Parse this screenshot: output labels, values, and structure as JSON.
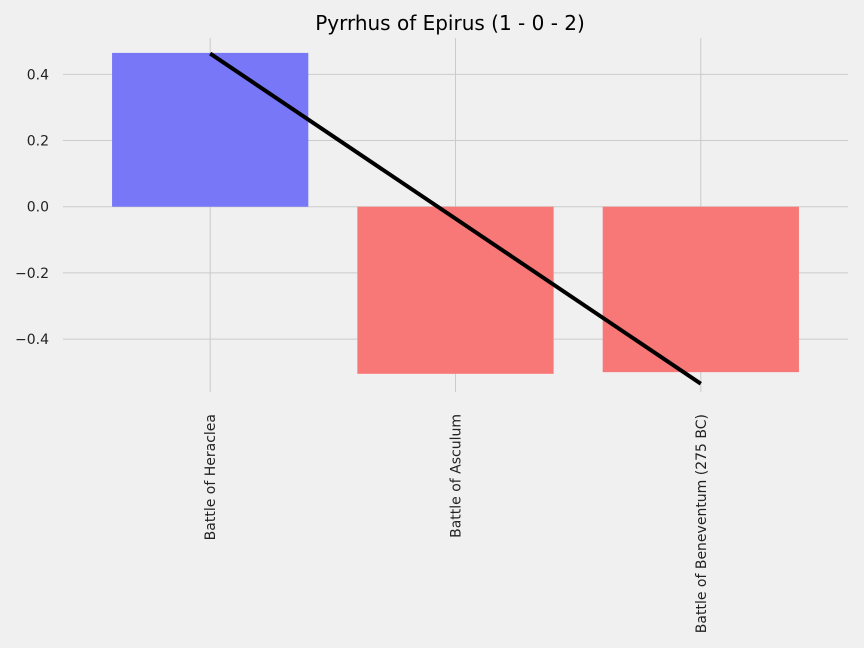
{
  "chart_data": {
    "type": "bar",
    "title": "Pyrrhus of Epirus (1 - 0 - 2)",
    "xlabel": "",
    "ylabel": "",
    "categories": [
      "Battle of Heraclea",
      "Battle of Asculum",
      "Battle of Beneventum (275 BC)"
    ],
    "values": [
      0.465,
      -0.505,
      -0.5
    ],
    "bar_colors": [
      "#7777f8",
      "#f87777",
      "#f87777"
    ],
    "trend_line": {
      "start": 0.463,
      "end": -0.535,
      "color": "#000000"
    },
    "ylim": [
      -0.56,
      0.51
    ],
    "yticks": [
      -0.4,
      -0.2,
      0.0,
      0.2,
      0.4
    ],
    "grid": true,
    "background_color": "#f0f0f0",
    "grid_color": "#cbcbcb"
  }
}
